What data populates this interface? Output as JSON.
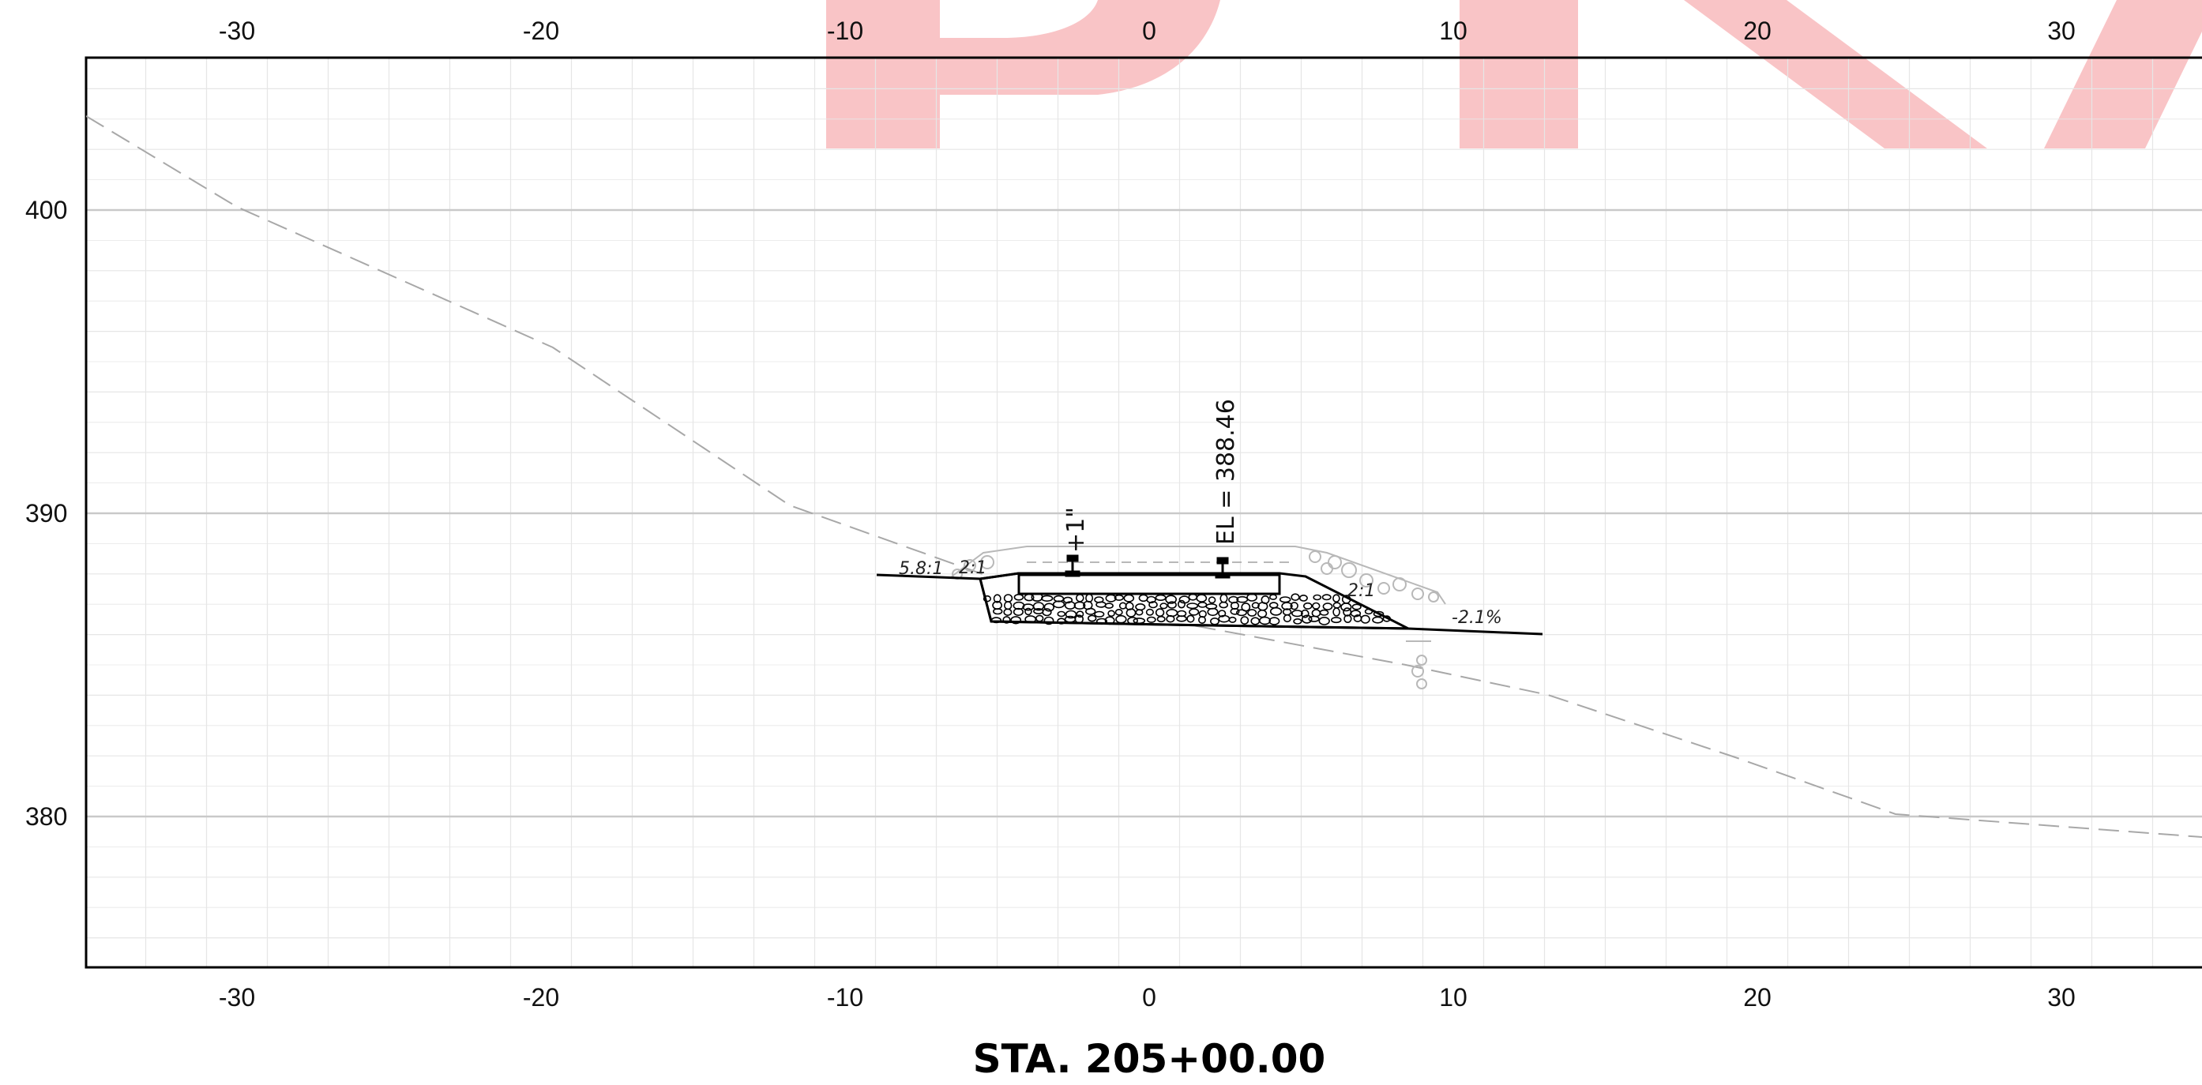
{
  "watermark": {
    "color": "#f7b5b8"
  },
  "axes": {
    "x_range": [
      -35,
      35
    ],
    "y_range": [
      375,
      405
    ],
    "x_ticks": [
      -30,
      -20,
      -10,
      0,
      10,
      20,
      30
    ],
    "y_ticks": [
      380,
      390,
      400
    ],
    "x_tick_labels": [
      "-30",
      "-20",
      "-10",
      "0",
      "10",
      "20",
      "30"
    ],
    "y_tick_labels": [
      "380",
      "390",
      "400"
    ]
  },
  "section": {
    "title": "STA. 205+00.00",
    "elevation_label": "EL = 388.46",
    "rail_lift_note": "+1\"",
    "slope_labels": {
      "left_outer": "5.8:1",
      "left_inner": "2:1",
      "right_inner": "2:1",
      "cross_slope": "-2.1%"
    }
  },
  "colors": {
    "axis": "#000000",
    "grid_major": "#c9c9c9",
    "grid_minor": "#e6e6e6",
    "ground": "#a8a8a8",
    "proposed": "#000000"
  }
}
